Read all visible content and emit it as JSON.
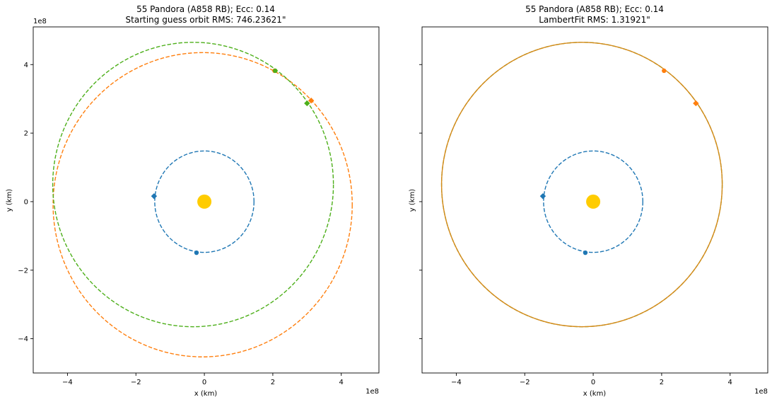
{
  "chart_data": [
    {
      "type": "line",
      "title": "55 Pandora (A858 RB); Ecc: 0.14",
      "subtitle": "Starting guess orbit RMS: 746.23621\"",
      "xlabel": "x (km)",
      "ylabel": "y (km)",
      "xlim": [
        -5.0,
        5.1
      ],
      "ylim": [
        -5.0,
        5.1
      ],
      "axis_scale_label": "1e8",
      "xticks": [
        -4,
        -2,
        0,
        2,
        4
      ],
      "yticks": [
        -4,
        -2,
        0,
        2,
        4
      ],
      "xtick_labels": [
        "−4",
        "−2",
        "0",
        "2",
        "4"
      ],
      "ytick_labels": [
        "−4",
        "−2",
        "0",
        "2",
        "4"
      ],
      "sun": {
        "x": 0,
        "y": 0,
        "color": "#ffcc00"
      },
      "orbits": [
        {
          "cx": 0,
          "cy": 0,
          "rx": 1.45,
          "ry": 1.48,
          "color": "#1f77b4",
          "dashed": true
        },
        {
          "cx": -0.05,
          "cy": -0.09,
          "rx": 4.37,
          "ry": 4.44,
          "color": "#ff7f0e",
          "dashed": true
        },
        {
          "cx": -0.33,
          "cy": 0.5,
          "rx": 4.1,
          "ry": 4.15,
          "color": "#4daf1a",
          "dashed": true
        }
      ],
      "markers": [
        {
          "x": -1.47,
          "y": 0.16,
          "color": "#1f77b4",
          "shape": "diamond"
        },
        {
          "x": -0.23,
          "y": -1.49,
          "color": "#1f77b4",
          "shape": "circle"
        },
        {
          "x": 2.05,
          "y": 3.82,
          "color": "#ff7f0e",
          "shape": "circle"
        },
        {
          "x": 3.12,
          "y": 2.95,
          "color": "#ff7f0e",
          "shape": "diamond"
        },
        {
          "x": 2.07,
          "y": 3.82,
          "color": "#4daf1a",
          "shape": "circle"
        },
        {
          "x": 3.0,
          "y": 2.87,
          "color": "#4daf1a",
          "shape": "diamond"
        }
      ]
    },
    {
      "type": "line",
      "title": "55 Pandora (A858 RB); Ecc: 0.14",
      "subtitle": "LambertFit RMS: 1.31921\"",
      "xlabel": "x (km)",
      "ylabel": "y (km)",
      "xlim": [
        -5.0,
        5.1
      ],
      "ylim": [
        -5.0,
        5.1
      ],
      "axis_scale_label": "1e8",
      "xticks": [
        -4,
        -2,
        0,
        2,
        4
      ],
      "yticks": [
        -4,
        -2,
        0,
        2,
        4
      ],
      "xtick_labels": [
        "−4",
        "−2",
        "0",
        "2",
        "4"
      ],
      "ytick_labels": [],
      "sun": {
        "x": 0,
        "y": 0,
        "color": "#ffcc00"
      },
      "orbits": [
        {
          "cx": 0,
          "cy": 0,
          "rx": 1.45,
          "ry": 1.48,
          "color": "#1f77b4",
          "dashed": true
        },
        {
          "cx": -0.33,
          "cy": 0.5,
          "rx": 4.1,
          "ry": 4.15,
          "color": "#4daf1a",
          "dashed": true
        },
        {
          "cx": -0.33,
          "cy": 0.5,
          "rx": 4.1,
          "ry": 4.15,
          "color": "#d8891a",
          "dashed": false
        }
      ],
      "markers": [
        {
          "x": -1.47,
          "y": 0.16,
          "color": "#1f77b4",
          "shape": "diamond"
        },
        {
          "x": -0.23,
          "y": -1.49,
          "color": "#1f77b4",
          "shape": "circle"
        },
        {
          "x": 2.07,
          "y": 3.82,
          "color": "#ff7f0e",
          "shape": "circle"
        },
        {
          "x": 3.0,
          "y": 2.87,
          "color": "#ff7f0e",
          "shape": "diamond"
        }
      ]
    }
  ]
}
